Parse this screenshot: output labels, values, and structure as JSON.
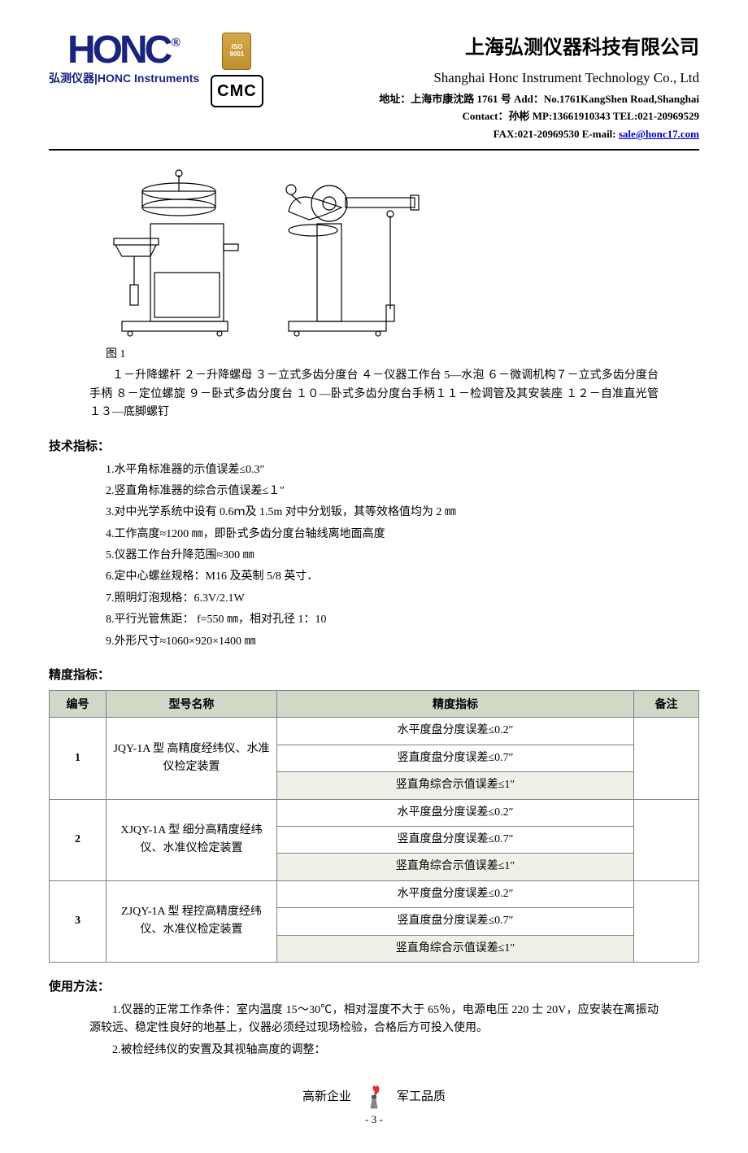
{
  "header": {
    "logo_text": "HONC",
    "reg_mark": "®",
    "logo_sub_cn": "弘测仪器",
    "logo_sub_sep": "|",
    "logo_sub_en": "HONC Instruments",
    "iso_line1": "ISO",
    "iso_line2": "9001",
    "cmc": "CMC",
    "company_cn": "上海弘测仪器科技有限公司",
    "company_en": "Shanghai Honc Instrument Technology Co., Ltd",
    "addr": "地址：上海市康沈路 1761 号    Add：No.1761KangShen Road,Shanghai",
    "contact": "Contact：孙彬  MP:13661910343    TEL:021-20969529",
    "fax_email_prefix": "FAX:021-20969530    E-mail:  ",
    "email": "sale@honc17.com"
  },
  "figure": {
    "caption": "图 1",
    "legend": "１－升降螺杆  ２－升降螺母  ３－立式多齿分度台  ４－仪器工作台  5—水泡  ６－微调机构７－立式多齿分度台手柄  ８－定位螺旋  ９－卧式多齿分度台  １０—卧式多齿分度台手柄１１－检调管及其安装座  １２－自准直光管  １３—底脚螺钉"
  },
  "specs": {
    "heading": "技术指标：",
    "items": [
      "1.水平角标准器的示值误差≤0.3″",
      "2.竖直角标准器的综合示值误差≤１″",
      "3.对中光学系统中设有 0.6ｍ及 1.5m 对中分划钣，其等效格值均为 2 ㎜",
      "4.工作高度≈1200 ㎜，即卧式多齿分度台轴线离地面高度",
      "5.仪器工作台升降范围≈300 ㎜",
      "6.定中心螺丝规格：M16 及英制 5/8 英寸．",
      "7.照明灯泡规格：6.3V/2.1W",
      "8.平行光管焦距：  f=550 ㎜，相对孔径 1：10",
      "9.外形尺寸≈1060×920×1400 ㎜"
    ]
  },
  "precision": {
    "heading": "精度指标：",
    "columns": [
      "编号",
      "型号名称",
      "精度指标",
      "备注"
    ],
    "rows": [
      {
        "id": "1",
        "name": "JQY-1A 型  高精度经纬仪、水准仪检定装置",
        "metrics": [
          "水平度盘分度误差≤0.2″",
          "竖直度盘分度误差≤0.7″",
          "竖直角综合示值误差≤1″"
        ],
        "note": ""
      },
      {
        "id": "2",
        "name": "XJQY-1A 型  细分高精度经纬仪、水准仪检定装置",
        "metrics": [
          "水平度盘分度误差≤0.2″",
          "竖直度盘分度误差≤0.7″",
          "竖直角综合示值误差≤1″"
        ],
        "note": ""
      },
      {
        "id": "3",
        "name": "ZJQY-1A 型  程控高精度经纬仪、水准仪检定装置",
        "metrics": [
          "水平度盘分度误差≤0.2″",
          "竖直度盘分度误差≤0.7″",
          "竖直角综合示值误差≤1″"
        ],
        "note": ""
      }
    ]
  },
  "usage": {
    "heading": "使用方法：",
    "p1": "1.仪器的正常工作条件：室内温度 15～30℃，相对湿度不大于 65％，电源电压 220 士 20V，应安装在离振动源较远、稳定性良好的地基上，仪器必须经过现场检验，合格后方可投入使用。",
    "p2": "2.被检经纬仪的安置及其视轴高度的调整："
  },
  "footer": {
    "left": "高新企业",
    "right": "军工品质",
    "page": "- 3 -"
  }
}
